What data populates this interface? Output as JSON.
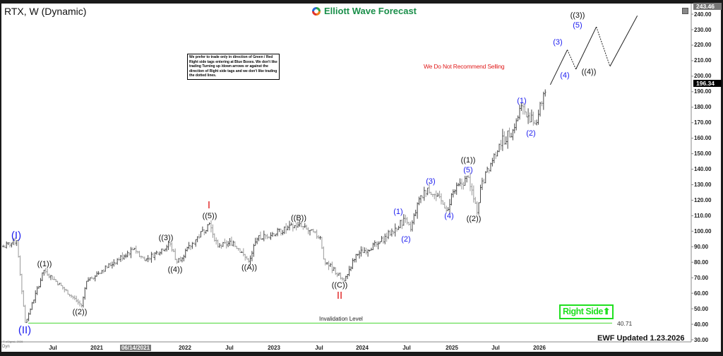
{
  "header": {
    "title": "RTX, W (Dynamic)",
    "logo_text": "Elliott Wave Forecast"
  },
  "note_box": "We prefer to trade only in direction of Green / Red Right side tags entering at Blue Boxes. We don't like trading Turning up /down arrows or against the direction of Right side tags and we don't like trading the dotted lines.",
  "recommendation": "We Do Not Recommend Selling",
  "invalidation": {
    "label": "Invalidation Level",
    "value": "40.71",
    "price": 40.71,
    "color": "#66dd55"
  },
  "right_side_tag": {
    "label": "Right Side",
    "icon": "arrow-up-icon",
    "color": "#1fe01f"
  },
  "footer": {
    "updated": "EWF Updated 1.23.2026",
    "esignal": "© eSignal, 2026",
    "dyn": "Dyn"
  },
  "price_tags": {
    "max": "243.46",
    "last": "196.34"
  },
  "chart_data": {
    "type": "ohlc-bar",
    "symbol": "RTX",
    "interval": "W",
    "ylim": [
      30,
      243.46
    ],
    "y_ticks": [
      "240.00",
      "230.00",
      "220.00",
      "210.00",
      "200.00",
      "190.00",
      "180.00",
      "170.00",
      "160.00",
      "150.00",
      "140.00",
      "130.00",
      "120.00",
      "110.00",
      "100.00",
      "90.00",
      "80.00",
      "70.00",
      "60.00",
      "50.00",
      "40.00",
      "30.00"
    ],
    "x_ticks": [
      "Jul",
      "2021",
      "06/14/2021",
      "2022",
      "Jul",
      "2023",
      "Jul",
      "2024",
      "Jul",
      "2025",
      "Jul",
      "2026"
    ],
    "price_path": [
      [
        "2019-12-13",
        90
      ],
      [
        "2020-02-07",
        94
      ],
      [
        "2020-03-13",
        40.71
      ],
      [
        "2020-05-29",
        75
      ],
      [
        "2020-10-30",
        52
      ],
      [
        "2020-11-20",
        68
      ],
      [
        "2021-06-04",
        89
      ],
      [
        "2021-07-16",
        81
      ],
      [
        "2021-10-29",
        92
      ],
      [
        "2021-11-26",
        80
      ],
      [
        "2022-04-08",
        105
      ],
      [
        "2022-05-13",
        90
      ],
      [
        "2022-07-15",
        93
      ],
      [
        "2022-09-16",
        80.5
      ],
      [
        "2022-10-21",
        95
      ],
      [
        "2023-04-07",
        104
      ],
      [
        "2023-07-07",
        96
      ],
      [
        "2023-07-21",
        82
      ],
      [
        "2023-10-13",
        68
      ],
      [
        "2023-12-01",
        85
      ],
      [
        "2024-03-01",
        92
      ],
      [
        "2024-05-10",
        102
      ],
      [
        "2024-06-21",
        108
      ],
      [
        "2024-07-12",
        101
      ],
      [
        "2024-08-09",
        118
      ],
      [
        "2024-09-20",
        128
      ],
      [
        "2024-12-13",
        114
      ],
      [
        "2024-12-27",
        124
      ],
      [
        "2025-03-07",
        135
      ],
      [
        "2025-04-11",
        111.5
      ],
      [
        "2025-04-25",
        128
      ],
      [
        "2025-07-11",
        156
      ],
      [
        "2025-09-05",
        165
      ],
      [
        "2025-10-10",
        181
      ],
      [
        "2025-12-05",
        169
      ],
      [
        "2026-01-23",
        196.34
      ]
    ],
    "projection": [
      [
        "2026-02-06",
        194.5
      ],
      [
        "2026-04-17",
        217
      ],
      [
        "2026-05-22",
        204.5
      ],
      [
        "2026-08-14",
        231.8
      ],
      [
        "2026-10-09",
        206.3
      ],
      [
        "2027-01-29",
        239
      ]
    ],
    "wave_labels": [
      {
        "text": "(I)",
        "color": "#1c1cf0"
      },
      {
        "text": "(II)",
        "color": "#1c1cf0"
      },
      {
        "text": "((1))",
        "color": "#111111"
      },
      {
        "text": "((2))",
        "color": "#111111"
      },
      {
        "text": "((3))",
        "color": "#111111"
      },
      {
        "text": "((4))",
        "color": "#111111"
      },
      {
        "text": "((5))",
        "color": "#111111"
      },
      {
        "text": "I",
        "color": "#e01b1b"
      },
      {
        "text": "((A))",
        "color": "#111111"
      },
      {
        "text": "((B))",
        "color": "#111111"
      },
      {
        "text": "((C))",
        "color": "#111111"
      },
      {
        "text": "II",
        "color": "#e01b1b"
      },
      {
        "text": "(1)",
        "color": "#1c1cf0"
      },
      {
        "text": "(2)",
        "color": "#1c1cf0"
      },
      {
        "text": "(3)",
        "color": "#1c1cf0"
      },
      {
        "text": "(4)",
        "color": "#1c1cf0"
      },
      {
        "text": "(5)",
        "color": "#1c1cf0"
      },
      {
        "text": "((1))",
        "color": "#111111"
      },
      {
        "text": "((2))",
        "color": "#111111"
      },
      {
        "text": "(1)",
        "color": "#1c1cf0"
      },
      {
        "text": "(2)",
        "color": "#1c1cf0"
      },
      {
        "text": "(3)",
        "color": "#1c1cf0"
      },
      {
        "text": "(4)",
        "color": "#1c1cf0"
      },
      {
        "text": "(5)",
        "color": "#1c1cf0"
      },
      {
        "text": "((3))",
        "color": "#111111"
      },
      {
        "text": "((4))",
        "color": "#111111"
      }
    ]
  }
}
